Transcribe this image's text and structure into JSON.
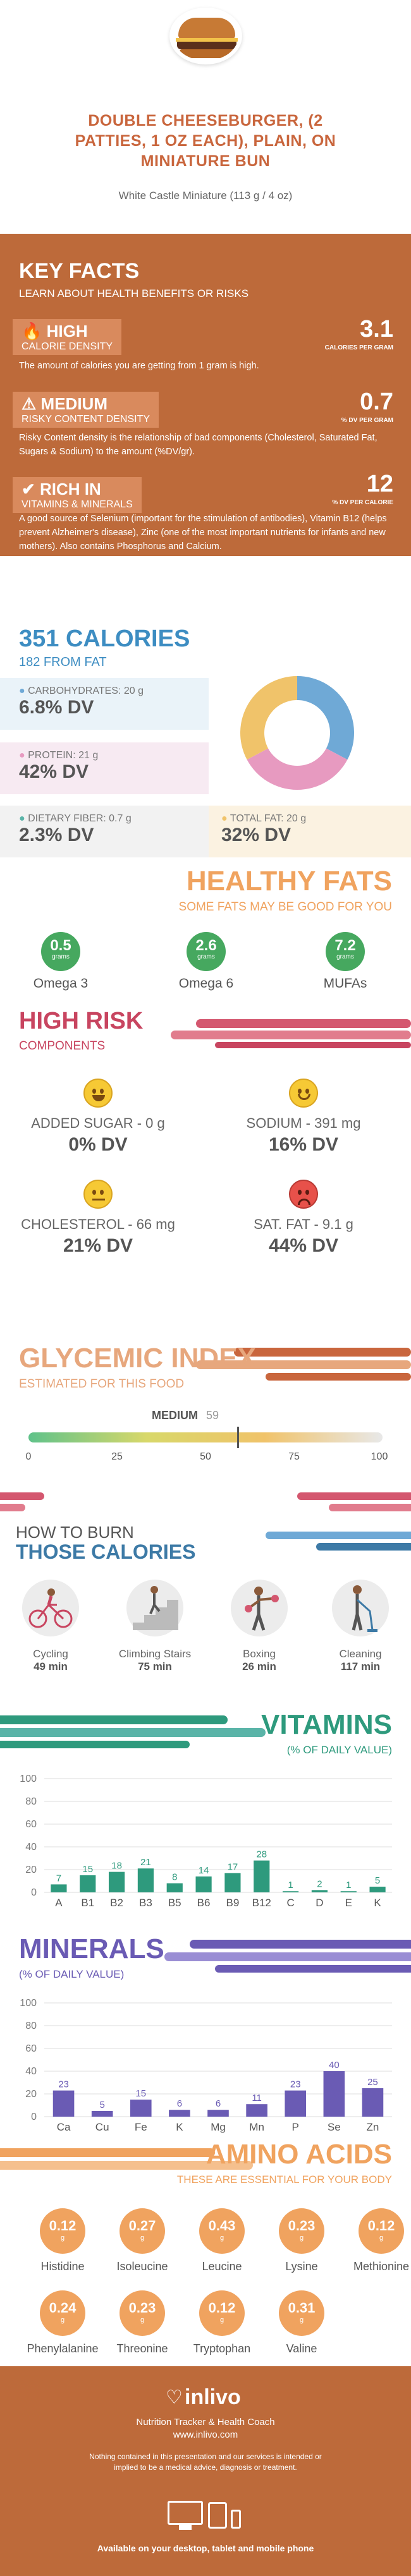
{
  "header": {
    "title_lines": [
      "DOUBLE CHEESEBURGER, (2",
      "PATTIES, 1 OZ EACH), PLAIN, ON",
      "MINIATURE BUN"
    ],
    "serving": "White Castle Miniature (113 g / 4 oz)"
  },
  "key_facts": {
    "title": "KEY FACTS",
    "subtitle": "LEARN ABOUT HEALTH BENEFITS OR RISKS",
    "items": [
      {
        "level": "HIGH",
        "name": "CALORIE DENSITY",
        "value": "3.1",
        "unit": "CALORIES PER GRAM",
        "desc": "The amount of calories you are getting from 1 gram is high."
      },
      {
        "level": "MEDIUM",
        "name": "RISKY CONTENT DENSITY",
        "value": "0.7",
        "unit": "% DV PER GRAM",
        "desc": "Risky Content density is the relationship of bad components (Cholesterol, Saturated Fat, Sugars & Sodium) to the amount (%DV/gr)."
      },
      {
        "level": "RICH IN",
        "name": "VITAMINS & MINERALS",
        "value": "12",
        "unit": "% DV PER CALORIE",
        "desc": "A good source of Selenium (important for the stimulation of antibodies), Vitamin B12 (helps prevent Alzheimer's disease), Zinc (one of the most important nutrients for infants and new mothers). Also contains Phosphorus and Calcium."
      }
    ]
  },
  "calories": {
    "title": "351 CALORIES",
    "from_fat": "182 FROM FAT",
    "macros": [
      {
        "label": "CARBOHYDRATES: 20 g",
        "dv": "6.8% DV",
        "color": "#6fa9d6"
      },
      {
        "label": "PROTEIN: 21 g",
        "dv": "42% DV",
        "color": "#e79ac0"
      },
      {
        "label": "DIETARY FIBER: 0.7 g",
        "dv": "2.3% DV",
        "color": "#5ab4a8"
      },
      {
        "label": "TOTAL FAT: 20 g",
        "dv": "32% DV",
        "color": "#f0c36a"
      }
    ],
    "donut": [
      {
        "name": "carbohydrates",
        "value": 20,
        "color": "#6fa9d6"
      },
      {
        "name": "protein",
        "value": 21,
        "color": "#e79ac0"
      },
      {
        "name": "total fat",
        "value": 20,
        "color": "#f0c36a"
      }
    ]
  },
  "healthy_fats": {
    "title": "HEALTHY FATS",
    "subtitle": "SOME FATS MAY BE GOOD FOR YOU",
    "items": [
      {
        "value": "0.5",
        "unit": "grams",
        "label": "Omega 3"
      },
      {
        "value": "2.6",
        "unit": "grams",
        "label": "Omega 6"
      },
      {
        "value": "7.2",
        "unit": "grams",
        "label": "MUFAs"
      }
    ]
  },
  "high_risk": {
    "title": "HIGH RISK",
    "subtitle": "COMPONENTS",
    "items": [
      {
        "label": "ADDED SUGAR - 0 g",
        "dv": "0% DV",
        "mood": "happy"
      },
      {
        "label": "SODIUM - 391 mg",
        "dv": "16% DV",
        "mood": "smile"
      },
      {
        "label": "CHOLESTEROL - 66 mg",
        "dv": "21% DV",
        "mood": "neutral"
      },
      {
        "label": "SAT. FAT - 9.1 g",
        "dv": "44% DV",
        "mood": "sad"
      }
    ]
  },
  "glycemic": {
    "title": "GLYCEMIC INDEX",
    "subtitle": "ESTIMATED FOR THIS FOOD",
    "level": "MEDIUM",
    "value": "59",
    "value_num": 59,
    "ticks": [
      "0",
      "25",
      "50",
      "75",
      "100"
    ]
  },
  "burn": {
    "title_top": "HOW TO BURN",
    "title_bottom": "THOSE CALORIES",
    "activities": [
      {
        "name": "Cycling",
        "time": "49 min",
        "icon": "cycling-icon"
      },
      {
        "name": "Climbing Stairs",
        "time": "75 min",
        "icon": "stairs-icon"
      },
      {
        "name": "Boxing",
        "time": "26 min",
        "icon": "boxing-icon"
      },
      {
        "name": "Cleaning",
        "time": "117 min",
        "icon": "cleaning-icon"
      }
    ]
  },
  "chart_data": [
    {
      "type": "bar",
      "title": "VITAMINS",
      "ylabel": "(% OF DAILY VALUE)",
      "categories": [
        "A",
        "B1",
        "B2",
        "B3",
        "B5",
        "B6",
        "B9",
        "B12",
        "C",
        "D",
        "E",
        "K"
      ],
      "values": [
        7,
        15,
        18,
        21,
        8,
        14,
        17,
        28,
        1,
        2,
        1,
        5
      ],
      "ylim": [
        0,
        100
      ],
      "yticks": [
        "0",
        "20",
        "40",
        "60",
        "80",
        "100"
      ],
      "color": "#2e9a7d"
    },
    {
      "type": "bar",
      "title": "MINERALS",
      "ylabel": "(% OF DAILY VALUE)",
      "categories": [
        "Ca",
        "Cu",
        "Fe",
        "K",
        "Mg",
        "Mn",
        "P",
        "Se",
        "Zn"
      ],
      "values": [
        23,
        5,
        15,
        6,
        6,
        11,
        23,
        40,
        25
      ],
      "ylim": [
        0,
        100
      ],
      "yticks": [
        "0",
        "20",
        "40",
        "60",
        "80",
        "100"
      ],
      "color": "#6a5bb4"
    }
  ],
  "amino": {
    "title": "AMINO ACIDS",
    "subtitle": "THESE ARE ESSENTIAL FOR YOUR BODY",
    "unit": "g",
    "items": [
      {
        "value": "0.12",
        "label": "Histidine"
      },
      {
        "value": "0.27",
        "label": "Isoleucine"
      },
      {
        "value": "0.43",
        "label": "Leucine"
      },
      {
        "value": "0.23",
        "label": "Lysine"
      },
      {
        "value": "0.12",
        "label": "Methionine"
      },
      {
        "value": "0.24",
        "label": "Phenylalanine"
      },
      {
        "value": "0.23",
        "label": "Threonine"
      },
      {
        "value": "0.12",
        "label": "Tryptophan"
      },
      {
        "value": "0.31",
        "label": "Valine"
      }
    ]
  },
  "footer": {
    "brand": "inlivo",
    "tagline": "Nutrition Tracker & Health Coach",
    "url": "www.inlivo.com",
    "disclaimer": "Nothing contained in this presentation and our services is intended or implied to be a medical advice, diagnosis or treatment.",
    "available": "Available on your desktop, tablet and mobile phone"
  }
}
